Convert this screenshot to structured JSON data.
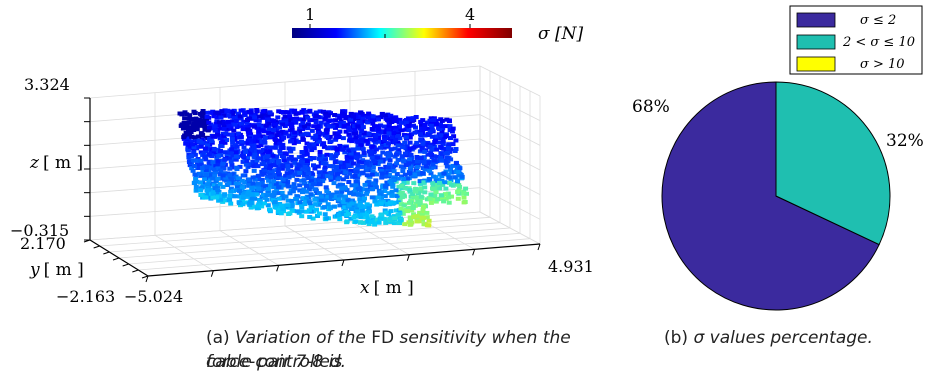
{
  "chart_data": [
    {
      "type": "scatter3d",
      "colorbar": {
        "label": "σ [N]",
        "ticks": [
          "1",
          "4"
        ],
        "colors": [
          "#000080",
          "#0000ff",
          "#00ffff",
          "#ffff00",
          "#ff0000",
          "#800000"
        ]
      },
      "axes": {
        "x": {
          "label": "x",
          "unit": "[ m ]",
          "ticks": [
            "−5.024",
            "4.931"
          ],
          "range": [
            -5.024,
            4.931
          ]
        },
        "y": {
          "label": "y",
          "unit": "[ m ]",
          "ticks": [
            "2.170",
            "−2.163"
          ],
          "range": [
            -2.163,
            2.17
          ]
        },
        "z": {
          "label": "z",
          "unit": "[ m ]",
          "ticks": [
            "3.324",
            "−0.315"
          ],
          "range": [
            -0.315,
            3.324
          ]
        }
      },
      "grid": true,
      "caption_prefix": "(a)",
      "caption_text_1": "Variation of the",
      "caption_fd": "FD",
      "caption_text_2": "sensitivity when the cable pair 7-8 is",
      "caption_line2": "force-controlled."
    },
    {
      "type": "pie",
      "slices": [
        {
          "label": "σ ≤ 2",
          "value": 68,
          "color": "#3b2a9e",
          "pct_label": "68%"
        },
        {
          "label": "2 < σ ≤ 10",
          "value": 32,
          "color": "#1fbfb0",
          "pct_label": "32%"
        },
        {
          "label": "σ > 10",
          "value": 0,
          "color": "#ffff00",
          "pct_label": ""
        }
      ],
      "legend_position": "top-right",
      "caption_prefix": "(b)",
      "caption_sigma": "σ",
      "caption_text": "values percentage."
    }
  ]
}
